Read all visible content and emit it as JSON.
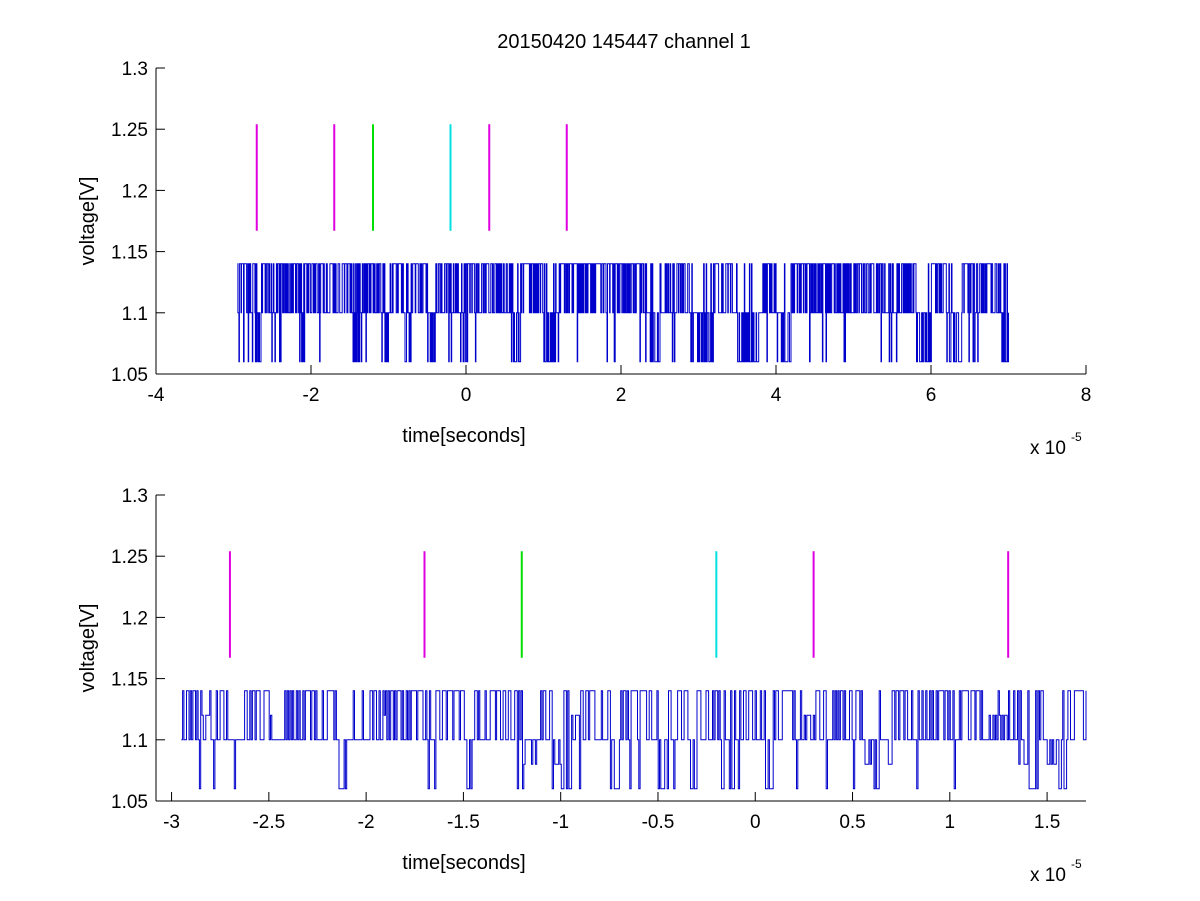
{
  "figure": {
    "title": "20150420 145447 channel 1"
  },
  "chart_data": [
    {
      "type": "line",
      "title": "20150420 145447 channel 1",
      "xlabel": "time[seconds]",
      "ylabel": "voltage[V]",
      "x_multiplier_base": "x 10",
      "x_multiplier_exponent": "-5",
      "xlim": [
        -4,
        8
      ],
      "ylim": [
        1.05,
        1.3
      ],
      "xticks": [
        -4,
        -2,
        0,
        2,
        4,
        6,
        8
      ],
      "xtick_labels": [
        "-4",
        "-2",
        "0",
        "2",
        "4",
        "6",
        "8"
      ],
      "yticks": [
        1.05,
        1.1,
        1.15,
        1.2,
        1.25,
        1.3
      ],
      "ytick_labels": [
        "1.05",
        "1.1",
        "1.15",
        "1.2",
        "1.25",
        "1.3"
      ],
      "grid": false,
      "series": [
        {
          "color": "#0000cc",
          "x_range": [
            -2.95,
            7.0
          ],
          "levels": [
            1.06,
            1.1,
            1.14
          ],
          "baseline": 1.1,
          "points": [
            [
              -2.95,
              1.14
            ],
            [
              -2.9,
              1.1
            ],
            [
              -2.85,
              1.14
            ],
            [
              -2.8,
              1.1
            ],
            [
              -2.75,
              1.14
            ],
            [
              -2.7,
              1.06
            ],
            [
              -2.65,
              1.14
            ],
            [
              -2.6,
              1.1
            ],
            [
              -2.55,
              1.14
            ],
            [
              -2.4,
              1.1
            ],
            [
              -2.3,
              1.14
            ],
            [
              -2.2,
              1.1
            ],
            [
              -2.15,
              1.06
            ],
            [
              -2.1,
              1.14
            ],
            [
              -2.0,
              1.1
            ],
            [
              -1.9,
              1.14
            ],
            [
              -1.8,
              1.1
            ],
            [
              -1.7,
              1.14
            ],
            [
              -1.6,
              1.1
            ],
            [
              -1.5,
              1.14
            ],
            [
              -1.45,
              1.06
            ],
            [
              -1.4,
              1.1
            ],
            [
              -1.3,
              1.14
            ],
            [
              -1.2,
              1.1
            ],
            [
              -1.1,
              1.06
            ],
            [
              -1.0,
              1.14
            ],
            [
              -0.9,
              1.1
            ],
            [
              -0.8,
              1.06
            ],
            [
              -0.7,
              1.14
            ],
            [
              -0.6,
              1.1
            ],
            [
              -0.5,
              1.06
            ],
            [
              -0.4,
              1.14
            ],
            [
              -0.3,
              1.1
            ],
            [
              -0.2,
              1.14
            ],
            [
              -0.1,
              1.06
            ],
            [
              0.0,
              1.1
            ],
            [
              0.1,
              1.14
            ],
            [
              0.3,
              1.1
            ],
            [
              0.5,
              1.14
            ],
            [
              0.6,
              1.06
            ],
            [
              0.7,
              1.1
            ],
            [
              0.8,
              1.14
            ],
            [
              1.0,
              1.06
            ],
            [
              1.2,
              1.1
            ],
            [
              1.3,
              1.14
            ],
            [
              1.5,
              1.1
            ],
            [
              1.7,
              1.14
            ],
            [
              2.0,
              1.1
            ],
            [
              2.3,
              1.06
            ],
            [
              2.5,
              1.14
            ],
            [
              2.8,
              1.1
            ],
            [
              2.9,
              1.06
            ],
            [
              3.2,
              1.14
            ],
            [
              3.5,
              1.06
            ],
            [
              3.8,
              1.1
            ],
            [
              4.0,
              1.06
            ],
            [
              4.2,
              1.14
            ],
            [
              4.5,
              1.1
            ],
            [
              4.8,
              1.14
            ],
            [
              5.0,
              1.1
            ],
            [
              5.3,
              1.14
            ],
            [
              5.6,
              1.1
            ],
            [
              5.8,
              1.06
            ],
            [
              6.0,
              1.14
            ],
            [
              6.2,
              1.06
            ],
            [
              6.4,
              1.14
            ],
            [
              6.6,
              1.1
            ],
            [
              6.8,
              1.14
            ],
            [
              6.9,
              1.06
            ],
            [
              7.0,
              1.1
            ]
          ]
        }
      ],
      "markers": [
        {
          "x": -2.7,
          "y": [
            1.167,
            1.254
          ],
          "color": "#e000e0"
        },
        {
          "x": -1.7,
          "y": [
            1.167,
            1.254
          ],
          "color": "#e000e0"
        },
        {
          "x": -1.2,
          "y": [
            1.167,
            1.254
          ],
          "color": "#00e000"
        },
        {
          "x": -0.2,
          "y": [
            1.167,
            1.254
          ],
          "color": "#00e0e0"
        },
        {
          "x": 0.3,
          "y": [
            1.167,
            1.254
          ],
          "color": "#e000e0"
        },
        {
          "x": 1.3,
          "y": [
            1.167,
            1.254
          ],
          "color": "#e000e0"
        }
      ]
    },
    {
      "type": "line",
      "xlabel": "time[seconds]",
      "ylabel": "voltage[V]",
      "x_multiplier_base": "x 10",
      "x_multiplier_exponent": "-5",
      "xlim": [
        -3.08,
        1.7
      ],
      "ylim": [
        1.05,
        1.3
      ],
      "xticks": [
        -3,
        -2.5,
        -2,
        -1.5,
        -1,
        -0.5,
        0,
        0.5,
        1,
        1.5
      ],
      "xtick_labels": [
        "-3",
        "-2.5",
        "-2",
        "-1.5",
        "-1",
        "-0.5",
        "0",
        "0.5",
        "1",
        "1.5"
      ],
      "yticks": [
        1.05,
        1.1,
        1.15,
        1.2,
        1.25,
        1.3
      ],
      "ytick_labels": [
        "1.05",
        "1.1",
        "1.15",
        "1.2",
        "1.25",
        "1.3"
      ],
      "grid": false,
      "series": [
        {
          "color": "#0000cc",
          "x_range": [
            -2.95,
            1.7
          ],
          "levels": [
            1.06,
            1.08,
            1.1,
            1.12,
            1.14
          ],
          "baseline": 1.1,
          "points": [
            [
              -2.95,
              1.14
            ],
            [
              -2.9,
              1.1
            ],
            [
              -2.85,
              1.12
            ],
            [
              -2.8,
              1.14
            ],
            [
              -2.75,
              1.1
            ],
            [
              -2.7,
              1.06
            ],
            [
              -2.65,
              1.14
            ],
            [
              -2.6,
              1.1
            ],
            [
              -2.55,
              1.14
            ],
            [
              -2.5,
              1.12
            ],
            [
              -2.45,
              1.14
            ],
            [
              -2.4,
              1.1
            ],
            [
              -2.3,
              1.14
            ],
            [
              -2.2,
              1.1
            ],
            [
              -2.15,
              1.06
            ],
            [
              -2.1,
              1.14
            ],
            [
              -2.0,
              1.1
            ],
            [
              -1.95,
              1.12
            ],
            [
              -1.9,
              1.14
            ],
            [
              -1.8,
              1.1
            ],
            [
              -1.7,
              1.14
            ],
            [
              -1.6,
              1.1
            ],
            [
              -1.5,
              1.06
            ],
            [
              -1.45,
              1.1
            ],
            [
              -1.4,
              1.14
            ],
            [
              -1.3,
              1.1
            ],
            [
              -1.25,
              1.14
            ],
            [
              -1.2,
              1.08
            ],
            [
              -1.1,
              1.14
            ],
            [
              -1.05,
              1.08
            ],
            [
              -1.0,
              1.06
            ],
            [
              -0.95,
              1.12
            ],
            [
              -0.9,
              1.14
            ],
            [
              -0.8,
              1.1
            ],
            [
              -0.75,
              1.06
            ],
            [
              -0.7,
              1.14
            ],
            [
              -0.6,
              1.1
            ],
            [
              -0.5,
              1.06
            ],
            [
              -0.45,
              1.14
            ],
            [
              -0.4,
              1.1
            ],
            [
              -0.35,
              1.06
            ],
            [
              -0.3,
              1.14
            ],
            [
              -0.2,
              1.1
            ],
            [
              -0.15,
              1.06
            ],
            [
              -0.1,
              1.14
            ],
            [
              0.0,
              1.1
            ],
            [
              0.05,
              1.06
            ],
            [
              0.1,
              1.14
            ],
            [
              0.2,
              1.12
            ],
            [
              0.3,
              1.14
            ],
            [
              0.4,
              1.1
            ],
            [
              0.5,
              1.14
            ],
            [
              0.55,
              1.08
            ],
            [
              0.6,
              1.06
            ],
            [
              0.65,
              1.08
            ],
            [
              0.7,
              1.14
            ],
            [
              0.8,
              1.1
            ],
            [
              0.9,
              1.14
            ],
            [
              1.0,
              1.1
            ],
            [
              1.1,
              1.14
            ],
            [
              1.2,
              1.12
            ],
            [
              1.3,
              1.14
            ],
            [
              1.35,
              1.08
            ],
            [
              1.4,
              1.06
            ],
            [
              1.45,
              1.14
            ],
            [
              1.5,
              1.08
            ],
            [
              1.55,
              1.06
            ],
            [
              1.6,
              1.14
            ],
            [
              1.7,
              1.1
            ]
          ]
        }
      ],
      "markers": [
        {
          "x": -2.7,
          "y": [
            1.167,
            1.254
          ],
          "color": "#e000e0"
        },
        {
          "x": -1.7,
          "y": [
            1.167,
            1.254
          ],
          "color": "#e000e0"
        },
        {
          "x": -1.2,
          "y": [
            1.167,
            1.254
          ],
          "color": "#00e000"
        },
        {
          "x": -0.2,
          "y": [
            1.167,
            1.254
          ],
          "color": "#00e0e0"
        },
        {
          "x": 0.3,
          "y": [
            1.167,
            1.254
          ],
          "color": "#e000e0"
        },
        {
          "x": 1.3,
          "y": [
            1.167,
            1.254
          ],
          "color": "#e000e0"
        }
      ]
    }
  ]
}
